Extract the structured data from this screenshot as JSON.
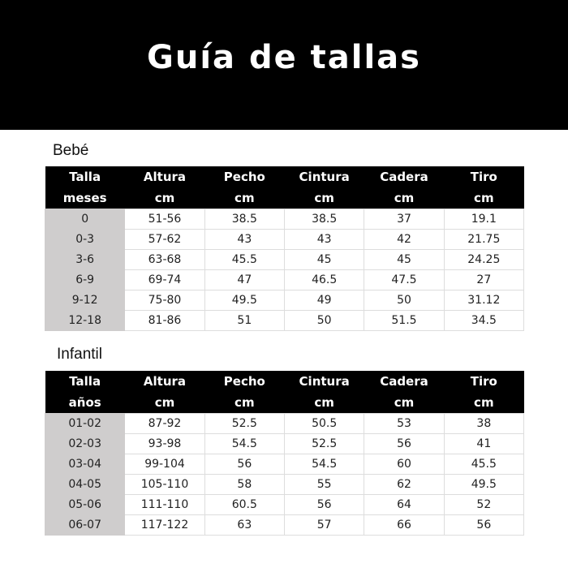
{
  "title": "Guía de tallas",
  "tables": [
    {
      "label": "Bebé",
      "headers": [
        [
          "Talla",
          "meses"
        ],
        [
          "Altura",
          "cm"
        ],
        [
          "Pecho",
          "cm"
        ],
        [
          "Cintura",
          "cm"
        ],
        [
          "Cadera",
          "cm"
        ],
        [
          "Tiro",
          "cm"
        ]
      ],
      "rows": [
        [
          "0",
          "51-56",
          "38.5",
          "38.5",
          "37",
          "19.1"
        ],
        [
          "0-3",
          "57-62",
          "43",
          "43",
          "42",
          "21.75"
        ],
        [
          "3-6",
          "63-68",
          "45.5",
          "45",
          "45",
          "24.25"
        ],
        [
          "6-9",
          "69-74",
          "47",
          "46.5",
          "47.5",
          "27"
        ],
        [
          "9-12",
          "75-80",
          "49.5",
          "49",
          "50",
          "31.12"
        ],
        [
          "12-18",
          "81-86",
          "51",
          "50",
          "51.5",
          "34.5"
        ]
      ]
    },
    {
      "label": "Infantil",
      "headers": [
        [
          "Talla",
          "años"
        ],
        [
          "Altura",
          "cm"
        ],
        [
          "Pecho",
          "cm"
        ],
        [
          "Cintura",
          "cm"
        ],
        [
          "Cadera",
          "cm"
        ],
        [
          "Tiro",
          "cm"
        ]
      ],
      "rows": [
        [
          "01-02",
          "87-92",
          "52.5",
          "50.5",
          "53",
          "38"
        ],
        [
          "02-03",
          "93-98",
          "54.5",
          "52.5",
          "56",
          "41"
        ],
        [
          "03-04",
          "99-104",
          "56",
          "54.5",
          "60",
          "45.5"
        ],
        [
          "04-05",
          "105-110",
          "58",
          "55",
          "62",
          "49.5"
        ],
        [
          "05-06",
          "111-110",
          "60.5",
          "56",
          "64",
          "52"
        ],
        [
          "06-07",
          "117-122",
          "63",
          "57",
          "66",
          "56"
        ]
      ]
    }
  ]
}
